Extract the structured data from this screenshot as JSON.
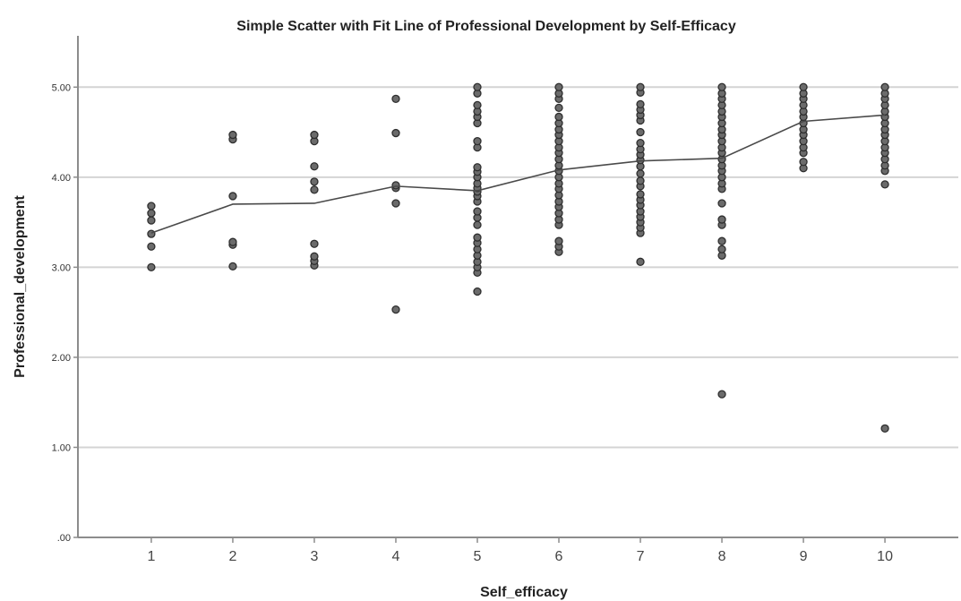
{
  "chart_data": {
    "type": "scatter",
    "title": "Simple Scatter with Fit Line of Professional Development by Self-Efficacy",
    "xlabel": "Self_efficacy",
    "ylabel": "Professional_development",
    "x_ticks": [
      "1",
      "2",
      "3",
      "4",
      "5",
      "6",
      "7",
      "8",
      "9",
      "10"
    ],
    "y_ticks": [
      {
        "value": 0,
        "label": ".00"
      },
      {
        "value": 1,
        "label": "1.00"
      },
      {
        "value": 2,
        "label": "2.00"
      },
      {
        "value": 3,
        "label": "3.00"
      },
      {
        "value": 4,
        "label": "4.00"
      },
      {
        "value": 5,
        "label": "5.00"
      }
    ],
    "xlim": [
      0.1,
      10.9
    ],
    "ylim": [
      0,
      5.5
    ],
    "grid": true,
    "points": [
      {
        "x": 1,
        "y": [
          3.0,
          3.23,
          3.37,
          3.52,
          3.6,
          3.68
        ]
      },
      {
        "x": 2,
        "y": [
          3.01,
          3.25,
          3.28,
          3.79,
          4.42,
          4.47
        ]
      },
      {
        "x": 3,
        "y": [
          3.02,
          3.07,
          3.12,
          3.26,
          3.86,
          3.95,
          4.12,
          4.4,
          4.47
        ]
      },
      {
        "x": 4,
        "y": [
          2.53,
          3.71,
          3.88,
          3.91,
          4.49,
          4.87
        ]
      },
      {
        "x": 5,
        "y": [
          2.73,
          2.94,
          3.0,
          3.06,
          3.13,
          3.2,
          3.27,
          3.33,
          3.47,
          3.55,
          3.62,
          3.73,
          3.79,
          3.84,
          3.88,
          3.93,
          4.0,
          4.06,
          4.11,
          4.33,
          4.4,
          4.6,
          4.67,
          4.73,
          4.8,
          4.93,
          5.0
        ]
      },
      {
        "x": 6,
        "y": [
          3.17,
          3.23,
          3.29,
          3.47,
          3.53,
          3.6,
          3.67,
          3.73,
          3.8,
          3.87,
          3.93,
          4.0,
          4.07,
          4.13,
          4.2,
          4.27,
          4.33,
          4.4,
          4.47,
          4.53,
          4.6,
          4.67,
          4.77,
          4.87,
          4.93,
          5.0
        ]
      },
      {
        "x": 7,
        "y": [
          3.06,
          3.38,
          3.44,
          3.5,
          3.56,
          3.62,
          3.69,
          3.75,
          3.81,
          3.9,
          3.96,
          4.04,
          4.12,
          4.19,
          4.25,
          4.31,
          4.38,
          4.5,
          4.63,
          4.69,
          4.75,
          4.81,
          4.94,
          5.0
        ]
      },
      {
        "x": 8,
        "y": [
          1.59,
          3.13,
          3.2,
          3.29,
          3.47,
          3.53,
          3.71,
          3.87,
          3.93,
          4.0,
          4.07,
          4.13,
          4.2,
          4.27,
          4.33,
          4.4,
          4.47,
          4.53,
          4.6,
          4.67,
          4.73,
          4.8,
          4.87,
          4.93,
          5.0
        ]
      },
      {
        "x": 9,
        "y": [
          4.1,
          4.17,
          4.27,
          4.33,
          4.4,
          4.47,
          4.53,
          4.6,
          4.67,
          4.73,
          4.8,
          4.87,
          4.93,
          5.0
        ]
      },
      {
        "x": 10,
        "y": [
          1.21,
          3.92,
          4.07,
          4.13,
          4.2,
          4.27,
          4.33,
          4.4,
          4.47,
          4.53,
          4.6,
          4.67,
          4.73,
          4.8,
          4.87,
          4.93,
          5.0
        ]
      }
    ],
    "fit_line": {
      "x": [
        1,
        2,
        3,
        4,
        5,
        6,
        7,
        8,
        9,
        10
      ],
      "y": [
        3.38,
        3.7,
        3.71,
        3.9,
        3.85,
        4.08,
        4.18,
        4.21,
        4.62,
        4.69
      ]
    }
  }
}
